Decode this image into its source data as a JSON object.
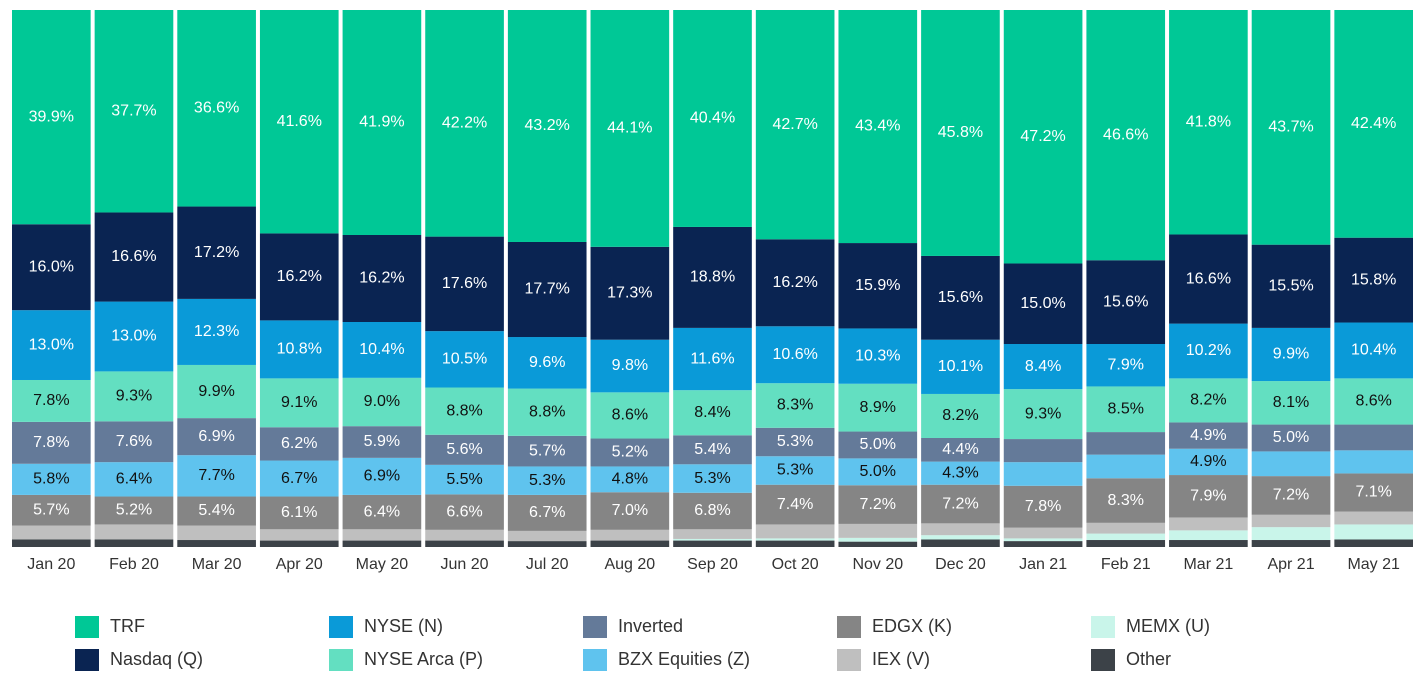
{
  "chart_data": {
    "type": "stacked_bar",
    "categories": [
      "Jan 20",
      "Feb 20",
      "Mar 20",
      "Apr 20",
      "May 20",
      "Jun 20",
      "Jul 20",
      "Aug 20",
      "Sep 20",
      "Oct 20",
      "Nov 20",
      "Dec 20",
      "Jan 21",
      "Feb 21",
      "Mar 21",
      "Apr 21",
      "May 21"
    ],
    "ylim": [
      0,
      100
    ],
    "series": [
      {
        "name": "TRF",
        "color": "#00c896",
        "values": [
          39.9,
          37.7,
          36.6,
          41.6,
          41.9,
          42.2,
          43.2,
          44.1,
          40.4,
          42.7,
          43.4,
          45.8,
          47.2,
          46.6,
          41.8,
          43.7,
          42.4
        ],
        "value_labels": [
          "39.9%",
          "37.7%",
          "36.6%",
          "41.6%",
          "41.9%",
          "42.2%",
          "43.2%",
          "44.1%",
          "40.4%",
          "42.7%",
          "43.4%",
          "45.8%",
          "47.2%",
          "46.6%",
          "41.8%",
          "43.7%",
          "42.4%"
        ]
      },
      {
        "name": "Nasdaq (Q)",
        "color": "#0a2452",
        "values": [
          16.0,
          16.6,
          17.2,
          16.2,
          16.2,
          17.6,
          17.7,
          17.3,
          18.8,
          16.2,
          15.9,
          15.6,
          15.0,
          15.6,
          16.6,
          15.5,
          15.8
        ],
        "value_labels": [
          "16.0%",
          "16.6%",
          "17.2%",
          "16.2%",
          "16.2%",
          "17.6%",
          "17.7%",
          "17.3%",
          "18.8%",
          "16.2%",
          "15.9%",
          "15.6%",
          "15.0%",
          "15.6%",
          "16.6%",
          "15.5%",
          "15.8%"
        ]
      },
      {
        "name": "NYSE (N)",
        "color": "#0a9ad8",
        "values": [
          13.0,
          13.0,
          12.3,
          10.8,
          10.4,
          10.5,
          9.6,
          9.8,
          11.6,
          10.6,
          10.3,
          10.1,
          8.4,
          7.9,
          10.2,
          9.9,
          10.4
        ],
        "value_labels": [
          "13.0%",
          "13.0%",
          "12.3%",
          "10.8%",
          "10.4%",
          "10.5%",
          "9.6%",
          "9.8%",
          "11.6%",
          "10.6%",
          "10.3%",
          "10.1%",
          "8.4%",
          "7.9%",
          "10.2%",
          "9.9%",
          "10.4%"
        ]
      },
      {
        "name": "NYSE Arca (P)",
        "color": "#63dfc1",
        "values": [
          7.8,
          9.3,
          9.9,
          9.1,
          9.0,
          8.8,
          8.8,
          8.6,
          8.4,
          8.3,
          8.9,
          8.2,
          9.3,
          8.5,
          8.2,
          8.1,
          8.6
        ],
        "value_labels": [
          "7.8%",
          "9.3%",
          "9.9%",
          "9.1%",
          "9.0%",
          "8.8%",
          "8.8%",
          "8.6%",
          "8.4%",
          "8.3%",
          "8.9%",
          "8.2%",
          "9.3%",
          "8.5%",
          "8.2%",
          "8.1%",
          "8.6%"
        ]
      },
      {
        "name": "Inverted",
        "color": "#647a99",
        "values": [
          7.8,
          7.6,
          6.9,
          6.2,
          5.9,
          5.6,
          5.7,
          5.2,
          5.4,
          5.3,
          5.0,
          4.4,
          4.3,
          4.2,
          4.9,
          5.0,
          4.8
        ],
        "value_labels": [
          "7.8%",
          "7.6%",
          "6.9%",
          "6.2%",
          "5.9%",
          "5.6%",
          "5.7%",
          "5.2%",
          "5.4%",
          "5.3%",
          "5.0%",
          "4.4%",
          null,
          null,
          "4.9%",
          "5.0%",
          null
        ]
      },
      {
        "name": "BZX Equities (Z)",
        "color": "#5fc3ee",
        "values": [
          5.8,
          6.4,
          7.7,
          6.7,
          6.9,
          5.5,
          5.3,
          4.8,
          5.3,
          5.3,
          5.0,
          4.3,
          4.4,
          4.4,
          4.9,
          4.6,
          4.3
        ],
        "value_labels": [
          "5.8%",
          "6.4%",
          "7.7%",
          "6.7%",
          "6.9%",
          "5.5%",
          "5.3%",
          "4.8%",
          "5.3%",
          "5.3%",
          "5.0%",
          "4.3%",
          null,
          null,
          "4.9%",
          null,
          null
        ]
      },
      {
        "name": "EDGX (K)",
        "color": "#858585",
        "values": [
          5.7,
          5.2,
          5.4,
          6.1,
          6.4,
          6.6,
          6.7,
          7.0,
          6.8,
          7.4,
          7.2,
          7.2,
          7.8,
          8.3,
          7.9,
          7.2,
          7.1
        ],
        "value_labels": [
          "5.7%",
          "5.2%",
          "5.4%",
          "6.1%",
          "6.4%",
          "6.6%",
          "6.7%",
          "7.0%",
          "6.8%",
          "7.4%",
          "7.2%",
          "7.2%",
          "7.8%",
          "8.3%",
          "7.9%",
          "7.2%",
          "7.1%"
        ]
      },
      {
        "name": "IEX (V)",
        "color": "#bfbfbf",
        "values": [
          2.6,
          2.8,
          2.7,
          2.1,
          2.1,
          2.0,
          1.9,
          2.0,
          1.8,
          2.6,
          2.6,
          2.2,
          2.0,
          2.0,
          2.4,
          2.3,
          2.4
        ]
      },
      {
        "name": "MEMX (U)",
        "color": "#c9f5ea",
        "values": [
          0,
          0,
          0,
          0,
          0,
          0,
          0,
          0,
          0.3,
          0.4,
          0.7,
          0.8,
          0.5,
          1.2,
          1.8,
          2.4,
          2.8
        ]
      },
      {
        "name": "Other",
        "color": "#3c4248",
        "values": [
          1.4,
          1.4,
          1.3,
          1.2,
          1.2,
          1.2,
          1.1,
          1.2,
          1.2,
          1.2,
          1.0,
          1.4,
          1.1,
          1.3,
          1.3,
          1.3,
          1.4
        ]
      }
    ]
  }
}
